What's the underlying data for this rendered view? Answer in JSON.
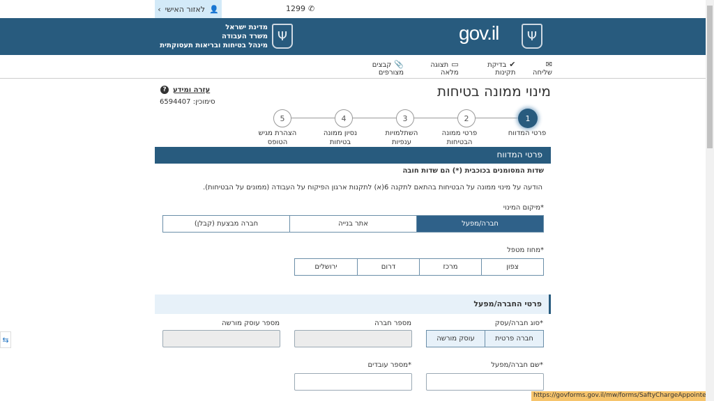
{
  "topbar": {
    "personal_area": "לאזור האישי",
    "phone": "1299"
  },
  "header": {
    "ministry_lines": [
      "מדינת ישראל",
      "משרד העבודה",
      "מינהל בטיחות ובריאות תעסוקתית"
    ],
    "logo_text": "gov.il"
  },
  "toolbar": {
    "items": [
      {
        "label": "שליחה",
        "icon": "envelope-icon"
      },
      {
        "label": "בדיקת תקינות",
        "icon": "check-icon"
      },
      {
        "label": "תצוגה מלאה",
        "icon": "fullscreen-icon"
      },
      {
        "label": "קבצים מצורפים",
        "icon": "paperclip-icon"
      }
    ]
  },
  "page": {
    "title": "מינוי ממונה בטיחות",
    "help": "עזרה ומידע",
    "code": "סימוכין: 6594407"
  },
  "steps": [
    {
      "num": "1",
      "label": "פרטי המדווח",
      "active": true
    },
    {
      "num": "2",
      "label": "פרטי ממונה הבטיחות"
    },
    {
      "num": "3",
      "label": "השתלמויות ענפיות"
    },
    {
      "num": "4",
      "label": "נסיון ממונה בטיחות"
    },
    {
      "num": "5",
      "label": "הצהרת מגיש הטופס"
    }
  ],
  "section": {
    "title": "פרטי המדווח",
    "required_note": "שדות המסומנים בכוכבית (*) הם שדות חובה",
    "notice": "הודעה על מינוי ממונה על הבטיחות בהתאם לתקנה 6(א) לתקנות ארגון הפיקוח על העבודה (ממונים על הבטיחות)."
  },
  "location": {
    "label": "*מיקום המינוי",
    "options": [
      "חברה/מפעל",
      "אתר בנייה",
      "חברה מבצעת (קבלן)"
    ],
    "selected": "חברה/מפעל"
  },
  "district": {
    "label": "*מחוז מטפל",
    "options": [
      "צפון",
      "מרכז",
      "דרום",
      "ירושלים"
    ]
  },
  "company": {
    "title": "פרטי החברה/מפעל",
    "type_label": "*סוג חברה/עסק",
    "type_options": [
      "חברה פרטית",
      "עוסק מורשה"
    ],
    "company_number_label": "מספר חברה",
    "company_number": "",
    "dealer_number_label": "מספר עוסק מורשה",
    "dealer_number": "",
    "name_label": "*שם חברה/מפעל",
    "name": "",
    "employees_label": "*מספר עובדים",
    "employees": ""
  },
  "statusbar": {
    "url": "https://govforms.gov.il/mw/forms/SaftyChargeAppointed@labor.gov.il#"
  },
  "colors": {
    "primary": "#285b7e",
    "light": "#e7f1f9",
    "status": "#f6c46c"
  }
}
